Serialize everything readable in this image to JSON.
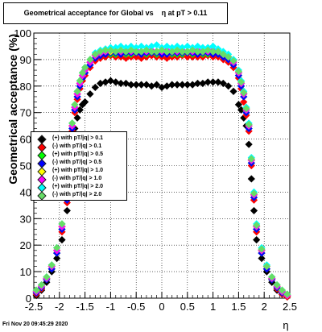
{
  "title": "Geometrical acceptance for Global vs    η at pT > 0.11",
  "footer": "Fri Nov 20 09:45:29 2020",
  "chart_data": {
    "type": "scatter",
    "xlabel": "η",
    "ylabel": "Geometrical acceptance (%)",
    "xlim": [
      -2.5,
      2.5
    ],
    "ylim": [
      0,
      100
    ],
    "xticks": [
      "-2.5",
      "-2",
      "-1.5",
      "-1",
      "-0.5",
      "0",
      "0.5",
      "1",
      "1.5",
      "2",
      "2.5"
    ],
    "yticks": [
      "0",
      "10",
      "20",
      "30",
      "40",
      "50",
      "60",
      "70",
      "80",
      "90",
      "100"
    ],
    "grid": true,
    "legend_position": "middle-left",
    "marker": "diamond",
    "x": [
      -2.45,
      -2.35,
      -2.25,
      -2.15,
      -2.05,
      -1.95,
      -1.85,
      -1.8,
      -1.75,
      -1.7,
      -1.65,
      -1.6,
      -1.55,
      -1.5,
      -1.4,
      -1.3,
      -1.2,
      -1.1,
      -1.0,
      -0.9,
      -0.8,
      -0.7,
      -0.6,
      -0.5,
      -0.4,
      -0.3,
      -0.2,
      -0.1,
      0.0,
      0.1,
      0.2,
      0.3,
      0.4,
      0.5,
      0.6,
      0.7,
      0.8,
      0.9,
      1.0,
      1.1,
      1.2,
      1.3,
      1.4,
      1.5,
      1.55,
      1.6,
      1.65,
      1.7,
      1.75,
      1.8,
      1.85,
      1.95,
      2.05,
      2.15,
      2.25,
      2.35,
      2.45
    ],
    "series": [
      {
        "name": "(+) with pT/|q| > 0.1",
        "color": "#000000",
        "values": [
          1,
          3,
          6,
          10,
          15,
          22,
          33,
          45,
          58,
          64,
          68,
          71,
          73,
          74,
          77,
          79.5,
          81,
          81.5,
          82,
          81.5,
          81,
          81,
          80.5,
          80.5,
          80.5,
          80.5,
          80,
          80.5,
          79.5,
          80,
          80.5,
          80.5,
          80.5,
          80.5,
          80.5,
          81,
          81,
          81.5,
          81.5,
          81.5,
          81,
          80,
          78,
          73,
          71,
          68,
          65,
          58,
          45,
          33,
          22,
          15,
          10,
          6,
          3,
          1.5,
          0.5
        ]
      },
      {
        "name": "(-) with pT/|q| > 0.1",
        "color": "#ff0000",
        "values": [
          1.5,
          3.5,
          7,
          11,
          17,
          25,
          36,
          50,
          63,
          70,
          75,
          79,
          82,
          84,
          87,
          89.5,
          90.5,
          91,
          91.5,
          91,
          91,
          90.5,
          91,
          91,
          90.5,
          91,
          91.5,
          91,
          91,
          90.5,
          91,
          91,
          91.5,
          91,
          91,
          91,
          91,
          91.5,
          91,
          91,
          90,
          89,
          87,
          83,
          79,
          74,
          69,
          63,
          50,
          37,
          25,
          17,
          11,
          7,
          3.5,
          1.5,
          0.5
        ]
      },
      {
        "name": "(+) with pT/|q| > 0.5",
        "color": "#00ff00",
        "values": [
          2,
          4,
          7,
          11,
          17,
          26,
          37,
          51,
          64,
          71,
          76,
          80,
          83,
          85,
          88,
          90.5,
          91.5,
          92,
          92,
          92,
          92.5,
          92,
          92,
          92.5,
          92,
          92,
          92.5,
          92,
          92,
          92.5,
          92,
          92,
          92,
          92.5,
          92,
          92.5,
          92,
          92,
          92.5,
          92,
          91,
          90,
          88,
          84,
          80,
          76,
          70,
          64,
          51,
          38,
          26,
          17,
          11,
          7,
          4,
          2,
          1
        ]
      },
      {
        "name": "(-) with pT/|q| > 0.5",
        "color": "#0000ff",
        "values": [
          2,
          4,
          7,
          11,
          17,
          26,
          37,
          51,
          64,
          71,
          76,
          80,
          83,
          85,
          88,
          90.5,
          91.5,
          92,
          92.5,
          92.5,
          92,
          92.5,
          92.5,
          92.5,
          92,
          92.5,
          92.5,
          92.5,
          92,
          92,
          92.5,
          92.5,
          92.5,
          92.5,
          92.5,
          92,
          92.5,
          92.5,
          92,
          92,
          91,
          90,
          88,
          84,
          80,
          76,
          70,
          64,
          51,
          38,
          26,
          17,
          11,
          7,
          4,
          2,
          1
        ]
      },
      {
        "name": "(+) with pT/|q| > 1.0",
        "color": "#ffff00",
        "values": [
          2.5,
          4.5,
          7.5,
          12,
          18,
          27,
          38,
          52,
          65,
          72,
          77,
          81,
          84,
          86,
          89,
          91.5,
          92.5,
          93,
          93,
          93.5,
          93,
          93,
          93.5,
          93,
          93,
          93.5,
          93,
          93,
          93.5,
          93,
          93,
          93.5,
          93,
          93,
          93.5,
          93,
          93,
          93.5,
          93,
          93,
          92,
          91,
          89,
          85,
          81,
          77,
          71,
          65,
          52,
          39,
          27,
          18,
          12,
          7.5,
          4.5,
          2.5,
          1
        ]
      },
      {
        "name": "(-) with pT/|q| > 1.0",
        "color": "#ff00ff",
        "values": [
          2.5,
          4.5,
          7.5,
          12,
          18,
          27,
          38,
          52,
          65,
          72,
          77,
          81,
          84,
          86,
          89,
          91.5,
          92.5,
          93,
          93.5,
          93,
          93,
          93.5,
          93,
          93.5,
          93,
          93,
          93.5,
          93,
          93,
          93.5,
          93,
          93,
          93.5,
          93,
          93,
          93.5,
          93,
          93,
          93.5,
          93,
          92,
          91,
          89,
          85,
          81,
          77,
          71,
          65,
          52,
          39,
          27,
          18,
          12,
          7.5,
          4.5,
          2.5,
          1
        ]
      },
      {
        "name": "(+) with pT/|q| > 2.0",
        "color": "#00ffff",
        "values": [
          3,
          5,
          8,
          12.5,
          19,
          28,
          39,
          53,
          66,
          73,
          78,
          82,
          85,
          87,
          90,
          92.5,
          93.5,
          94,
          94.5,
          94.5,
          95,
          94.5,
          95,
          94.5,
          95,
          94.5,
          95,
          95.5,
          94.5,
          95,
          94.5,
          95,
          94.5,
          95,
          94.5,
          95,
          94.5,
          94.5,
          95,
          94,
          93,
          92,
          90,
          86,
          82,
          78,
          72,
          66,
          53,
          40,
          28,
          19,
          12.5,
          8,
          5,
          3,
          1.5
        ]
      },
      {
        "name": "(-) with pT/|q| > 2.0",
        "color": "#66dd66",
        "values": [
          3,
          5,
          8,
          12.5,
          19,
          28,
          39,
          53,
          66,
          73,
          78,
          82,
          85,
          87,
          90,
          92,
          93,
          93.5,
          93.5,
          93,
          93.5,
          93,
          93.5,
          93,
          93,
          93.5,
          93,
          93,
          93.5,
          93,
          93,
          93.5,
          93,
          93,
          93.5,
          93,
          93,
          93.5,
          93,
          93,
          92,
          91,
          89.5,
          85.5,
          81.5,
          77.5,
          71.5,
          65.5,
          52.5,
          39.5,
          27.5,
          18.5,
          12,
          8,
          5,
          3,
          1.5
        ]
      }
    ]
  }
}
